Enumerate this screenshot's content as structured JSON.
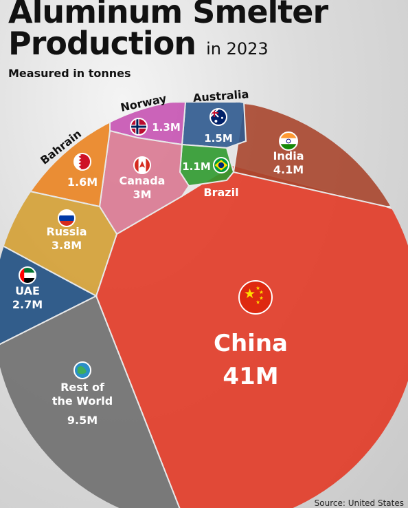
{
  "header": {
    "title_line1": "Aluminum Smelter",
    "title_line2": "Production",
    "title_suffix": "in 2023",
    "subtitle": "Measured in tonnes"
  },
  "footer": {
    "source": "Source: United States"
  },
  "chart_data": {
    "type": "voronoi",
    "title": "Aluminum Smelter Production in 2023",
    "subtitle": "Measured in tonnes",
    "units": "tonnes",
    "slices": [
      {
        "name": "China",
        "value_label": "41M",
        "value": 41000000,
        "color": "#e23a26",
        "flag": "flag-china-icon"
      },
      {
        "name": "India",
        "value_label": "4.1M",
        "value": 4100000,
        "color": "#a8462e",
        "flag": "flag-india-icon"
      },
      {
        "name": "Australia",
        "value_label": "1.5M",
        "value": 1500000,
        "color": "#2f5a8f",
        "flag": "flag-australia-icon"
      },
      {
        "name": "Brazil",
        "value_label": "1.1M",
        "value": 1100000,
        "color": "#2f9a2f",
        "flag": "flag-brazil-icon"
      },
      {
        "name": "Norway",
        "value_label": "1.3M",
        "value": 1300000,
        "color": "#c653b3",
        "flag": "flag-norway-icon"
      },
      {
        "name": "Canada",
        "value_label": "3M",
        "value": 3000000,
        "color": "#d97891",
        "flag": "flag-canada-icon"
      },
      {
        "name": "Bahrain",
        "value_label": "1.6M",
        "value": 1600000,
        "color": "#ea8320",
        "flag": "flag-bahrain-icon"
      },
      {
        "name": "Russia",
        "value_label": "3.8M",
        "value": 3800000,
        "color": "#d4a034",
        "flag": "flag-russia-icon"
      },
      {
        "name": "UAE",
        "value_label": "2.7M",
        "value": 2700000,
        "color": "#1f4f82",
        "flag": "flag-uae-icon"
      },
      {
        "name": "Rest of\nthe World",
        "value_label": "9.5M",
        "value": 9500000,
        "color": "#6f6f6f",
        "flag": "globe-icon"
      }
    ]
  }
}
